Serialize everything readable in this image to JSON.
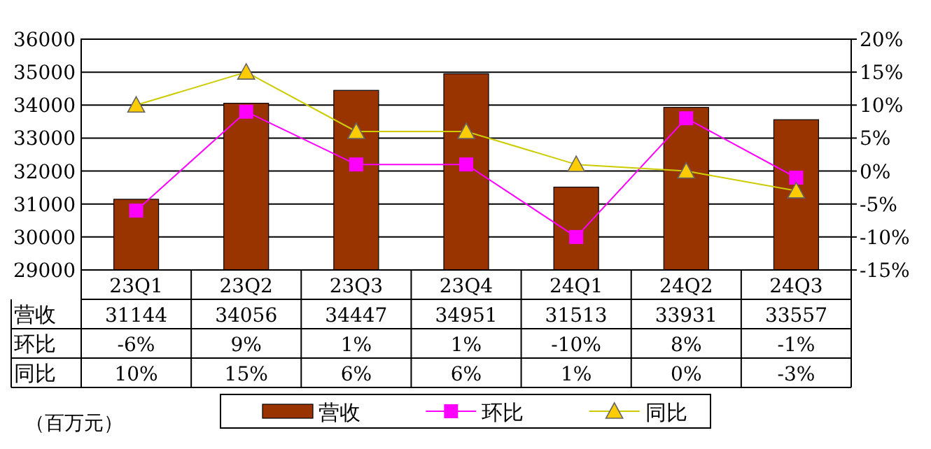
{
  "chart_data": {
    "type": "bar",
    "categories": [
      "23Q1",
      "23Q2",
      "23Q3",
      "23Q4",
      "24Q1",
      "24Q2",
      "24Q3"
    ],
    "series": [
      {
        "name": "营收",
        "color": "#993300",
        "values": [
          31144,
          34056,
          34447,
          34951,
          31513,
          33931,
          33557
        ],
        "value_labels": [
          "31144",
          "34056",
          "34447",
          "34951",
          "31513",
          "33931",
          "33557"
        ]
      },
      {
        "name": "环比",
        "type": "line",
        "axis": "y2",
        "color": "#ff00ff",
        "marker": "square",
        "values": [
          -6,
          9,
          1,
          1,
          -10,
          8,
          -1
        ],
        "value_labels": [
          "-6%",
          "9%",
          "1%",
          "1%",
          "-10%",
          "8%",
          "-1%"
        ]
      },
      {
        "name": "同比",
        "type": "line",
        "axis": "y2",
        "color": "#cccc00",
        "marker": "triangle",
        "values": [
          10,
          15,
          6,
          6,
          1,
          0,
          -3
        ],
        "value_labels": [
          "10%",
          "15%",
          "6%",
          "6%",
          "1%",
          "0%",
          "-3%"
        ]
      }
    ],
    "ylim": [
      29000,
      36000
    ],
    "yticks": [
      29000,
      30000,
      31000,
      32000,
      33000,
      34000,
      35000,
      36000
    ],
    "y2lim": [
      -15,
      20
    ],
    "y2ticks": [
      {
        "value": -15,
        "label": "-15%"
      },
      {
        "value": -10,
        "label": "-10%"
      },
      {
        "value": -5,
        "label": "-5%"
      },
      {
        "value": 0,
        "label": "0%"
      },
      {
        "value": 5,
        "label": "5%"
      },
      {
        "value": 10,
        "label": "10%"
      },
      {
        "value": 15,
        "label": "15%"
      },
      {
        "value": 20,
        "label": "20%"
      }
    ],
    "grid": "y",
    "legend": "bottom",
    "annotations": [
      "（百万元）"
    ]
  }
}
